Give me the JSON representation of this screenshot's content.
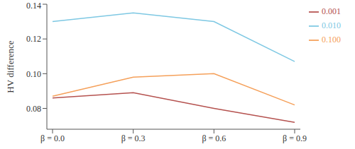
{
  "chart_data": {
    "type": "line",
    "y_label": "HV difference",
    "categories": [
      "β = 0.0",
      "β = 0.3",
      "β = 0.6",
      "β = 0.9"
    ],
    "series": [
      {
        "name": "0.001",
        "color": "#b5524f",
        "values": [
          0.086,
          0.089,
          0.08,
          0.072
        ]
      },
      {
        "name": "0.010",
        "color": "#7ec8e3",
        "values": [
          0.13,
          0.135,
          0.13,
          0.107
        ]
      },
      {
        "name": "0.100",
        "color": "#f5a05a",
        "values": [
          0.087,
          0.098,
          0.1,
          0.082
        ]
      }
    ],
    "ylim": [
      0.068,
      0.14
    ],
    "yticks": [
      0.08,
      {
        "value": 0.1,
        "label": "0.10"
      },
      0.12,
      0.14
    ],
    "grid": false,
    "legend": "right"
  }
}
